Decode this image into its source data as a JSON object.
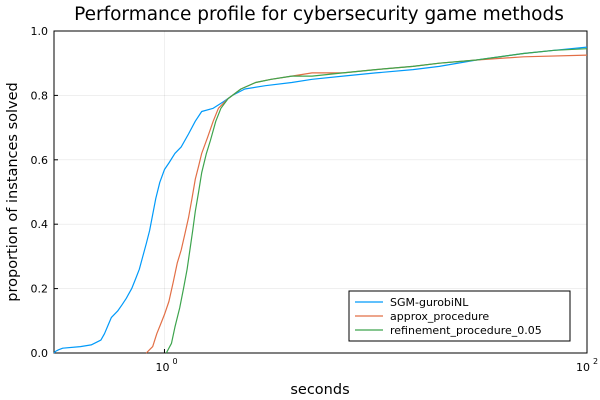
{
  "chart_data": {
    "type": "line",
    "title": "Performance profile for cybersecurity game methods",
    "xlabel": "seconds",
    "ylabel": "proportion of instances solved",
    "xscale": "log",
    "xlim": [
      0.3,
      100
    ],
    "ylim": [
      0,
      1
    ],
    "x_ticks": [
      {
        "value": 1,
        "base": "10",
        "exp": "0"
      },
      {
        "value": 100,
        "base": "10",
        "exp": "2"
      }
    ],
    "y_ticks": [
      {
        "value": 0.0,
        "label": "0.0"
      },
      {
        "value": 0.2,
        "label": "0.2"
      },
      {
        "value": 0.4,
        "label": "0.4"
      },
      {
        "value": 0.6,
        "label": "0.6"
      },
      {
        "value": 0.8,
        "label": "0.8"
      },
      {
        "value": 1.0,
        "label": "1.0"
      }
    ],
    "grid": true,
    "legend_position": "bottom-right",
    "series": [
      {
        "name": "SGM-gurobiNL",
        "color": "#009AFA",
        "points": [
          [
            0.3,
            0.0
          ],
          [
            0.305,
            0.005
          ],
          [
            0.315,
            0.01
          ],
          [
            0.33,
            0.015
          ],
          [
            0.4,
            0.02
          ],
          [
            0.45,
            0.025
          ],
          [
            0.5,
            0.04
          ],
          [
            0.52,
            0.06
          ],
          [
            0.54,
            0.085
          ],
          [
            0.56,
            0.11
          ],
          [
            0.6,
            0.13
          ],
          [
            0.63,
            0.15
          ],
          [
            0.66,
            0.17
          ],
          [
            0.7,
            0.2
          ],
          [
            0.73,
            0.23
          ],
          [
            0.76,
            0.26
          ],
          [
            0.79,
            0.3
          ],
          [
            0.82,
            0.34
          ],
          [
            0.85,
            0.38
          ],
          [
            0.88,
            0.43
          ],
          [
            0.91,
            0.48
          ],
          [
            0.95,
            0.53
          ],
          [
            1.0,
            0.57
          ],
          [
            1.05,
            0.59
          ],
          [
            1.12,
            0.62
          ],
          [
            1.2,
            0.64
          ],
          [
            1.3,
            0.68
          ],
          [
            1.4,
            0.72
          ],
          [
            1.5,
            0.75
          ],
          [
            1.7,
            0.76
          ],
          [
            1.9,
            0.78
          ],
          [
            2.1,
            0.8
          ],
          [
            2.4,
            0.82
          ],
          [
            3.0,
            0.83
          ],
          [
            4.0,
            0.84
          ],
          [
            5.0,
            0.85
          ],
          [
            7.0,
            0.86
          ],
          [
            10.0,
            0.87
          ],
          [
            15.0,
            0.88
          ],
          [
            20.0,
            0.89
          ],
          [
            30.0,
            0.91
          ],
          [
            50.0,
            0.93
          ],
          [
            70.0,
            0.94
          ],
          [
            100.0,
            0.95
          ]
        ]
      },
      {
        "name": "approx_procedure",
        "color": "#E26F46",
        "points": [
          [
            0.82,
            0.0
          ],
          [
            0.88,
            0.02
          ],
          [
            0.92,
            0.06
          ],
          [
            0.96,
            0.09
          ],
          [
            1.0,
            0.12
          ],
          [
            1.05,
            0.16
          ],
          [
            1.1,
            0.22
          ],
          [
            1.15,
            0.28
          ],
          [
            1.2,
            0.32
          ],
          [
            1.25,
            0.37
          ],
          [
            1.3,
            0.42
          ],
          [
            1.35,
            0.48
          ],
          [
            1.4,
            0.54
          ],
          [
            1.45,
            0.58
          ],
          [
            1.5,
            0.62
          ],
          [
            1.6,
            0.67
          ],
          [
            1.7,
            0.72
          ],
          [
            1.8,
            0.76
          ],
          [
            2.0,
            0.79
          ],
          [
            2.3,
            0.82
          ],
          [
            2.7,
            0.84
          ],
          [
            3.2,
            0.85
          ],
          [
            4.0,
            0.86
          ],
          [
            5.0,
            0.87
          ],
          [
            7.0,
            0.87
          ],
          [
            10.0,
            0.88
          ],
          [
            15.0,
            0.89
          ],
          [
            20.0,
            0.9
          ],
          [
            30.0,
            0.91
          ],
          [
            50.0,
            0.92
          ],
          [
            100.0,
            0.925
          ]
        ]
      },
      {
        "name": "refinement_procedure_0.05",
        "color": "#3DA44D",
        "points": [
          [
            1.02,
            0.0
          ],
          [
            1.08,
            0.03
          ],
          [
            1.12,
            0.08
          ],
          [
            1.18,
            0.14
          ],
          [
            1.23,
            0.2
          ],
          [
            1.28,
            0.26
          ],
          [
            1.32,
            0.32
          ],
          [
            1.36,
            0.38
          ],
          [
            1.4,
            0.44
          ],
          [
            1.45,
            0.5
          ],
          [
            1.5,
            0.56
          ],
          [
            1.58,
            0.62
          ],
          [
            1.65,
            0.66
          ],
          [
            1.75,
            0.72
          ],
          [
            1.85,
            0.76
          ],
          [
            2.0,
            0.79
          ],
          [
            2.3,
            0.82
          ],
          [
            2.7,
            0.84
          ],
          [
            3.2,
            0.85
          ],
          [
            4.0,
            0.86
          ],
          [
            5.0,
            0.86
          ],
          [
            7.0,
            0.87
          ],
          [
            10.0,
            0.88
          ],
          [
            15.0,
            0.89
          ],
          [
            20.0,
            0.9
          ],
          [
            30.0,
            0.91
          ],
          [
            50.0,
            0.93
          ],
          [
            70.0,
            0.94
          ],
          [
            100.0,
            0.945
          ]
        ]
      }
    ]
  }
}
